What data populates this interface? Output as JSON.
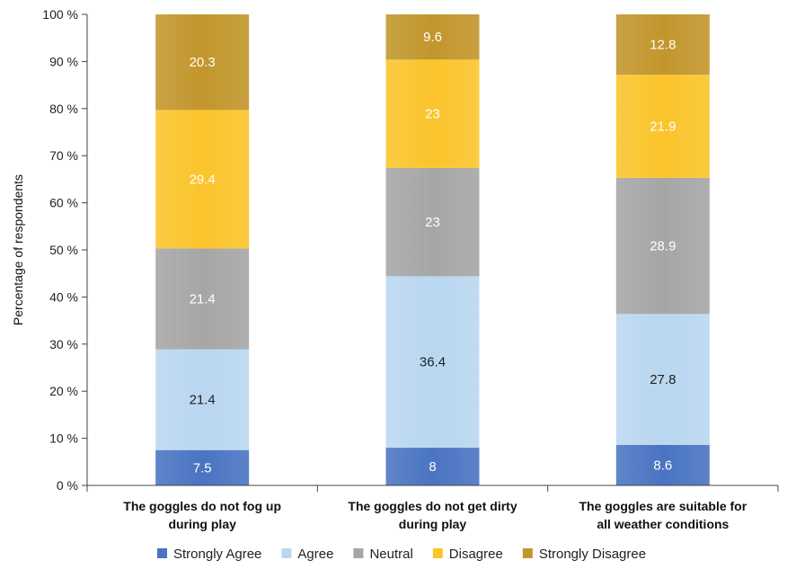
{
  "chart_data": {
    "type": "bar",
    "stacked": true,
    "title": "",
    "xlabel": "",
    "ylabel": "Percentage of respondents",
    "ylim": [
      0,
      100
    ],
    "yticks": [
      "0 %",
      "10 %",
      "20 %",
      "30 %",
      "40 %",
      "50 %",
      "60 %",
      "70 %",
      "80 %",
      "90 %",
      "100 %"
    ],
    "grid": false,
    "legend_position": "bottom",
    "categories": [
      [
        "The goggles do not fog up",
        "during play"
      ],
      [
        "The goggles do not get dirty",
        "during play"
      ],
      [
        "The goggles are suitable for",
        "all weather conditions"
      ]
    ],
    "series": [
      {
        "name": "Strongly Agree",
        "color": "#4a74c2",
        "label_color": "#ffffff",
        "values": [
          7.5,
          8,
          8.6
        ],
        "labels": [
          "7.5",
          "8",
          "8.6"
        ]
      },
      {
        "name": "Agree",
        "color": "#b9d7f0",
        "label_color": "#222222",
        "values": [
          21.4,
          36.4,
          27.8
        ],
        "labels": [
          "21.4",
          "36.4",
          "27.8"
        ]
      },
      {
        "name": "Neutral",
        "color": "#a6a6a6",
        "label_color": "#ffffff",
        "values": [
          21.4,
          23,
          28.9
        ],
        "labels": [
          "21.4",
          "23",
          "28.9"
        ]
      },
      {
        "name": "Disagree",
        "color": "#fbc42b",
        "label_color": "#ffffff",
        "values": [
          29.4,
          23,
          21.9
        ],
        "labels": [
          "29.4",
          "23",
          "21.9"
        ]
      },
      {
        "name": "Strongly Disagree",
        "color": "#c2962c",
        "label_color": "#ffffff",
        "values": [
          20.3,
          9.6,
          12.8
        ],
        "labels": [
          "20.3",
          "9.6",
          "12.8"
        ]
      }
    ]
  }
}
